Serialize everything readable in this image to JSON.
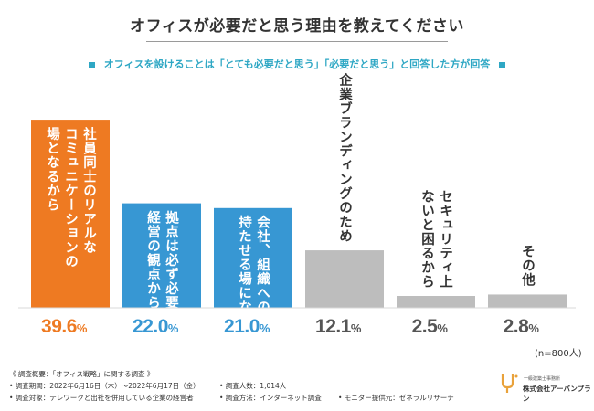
{
  "title": "オフィスが必要だと思う理由を教えてください",
  "subtitle": "オフィスを設けることは「とても必要だと思う」「必要だと思う」と回答した方が回答",
  "colors": {
    "accent": "#ee7a22",
    "blue": "#3797d3",
    "gray": "#bdbdbd",
    "teal": "#2ea7c4"
  },
  "chart_data": {
    "type": "bar",
    "title": "オフィスが必要だと思う理由を教えてください",
    "categories": [
      "社員同士のリアルなコミュニケーションの場となるから",
      "拠点は必ず必要だから経営の観点から",
      "会社、組織への帰属意識を持たせる場になるから",
      "企業ブランディングのため",
      "セキュリティ上ないと困るから",
      "その他"
    ],
    "values": [
      39.6,
      22.0,
      21.0,
      12.1,
      2.5,
      2.8
    ],
    "value_labels": [
      {
        "main": "39.6",
        "unit": "%"
      },
      {
        "main": "22.0",
        "unit": "%"
      },
      {
        "main": "21.0",
        "unit": "%"
      },
      {
        "main": "12.1",
        "unit": "%"
      },
      {
        "main": "2.5",
        "unit": "%"
      },
      {
        "main": "2.8",
        "unit": "%"
      }
    ],
    "bar_label_lines": [
      [
        "社員同士のリアルな",
        "コミュニケーションの",
        "場となるから"
      ],
      [
        "拠点は必ず必要だから",
        "経営の観点から"
      ],
      [
        "会社、組織への帰属意識を",
        "持たせる場になるから"
      ],
      [
        "企業ブランディングのため"
      ],
      [
        "セキュリティ上",
        "ないと困るから"
      ],
      [
        "その他"
      ]
    ],
    "bar_colors": [
      "#ee7a22",
      "#3797d3",
      "#3797d3",
      "#bdbdbd",
      "#bdbdbd",
      "#bdbdbd"
    ],
    "ylim": [
      0,
      45
    ],
    "note": "(n=800人)"
  },
  "footer": {
    "overview": "《 調査概要：「オフィス戦略」に関する調査 》",
    "period": "• 調査期間：2022年6月16日（木）～2022年6月17日（金）",
    "target": "• 調査対象：テレワークと出社を併用している企業の経営者",
    "count": "• 調査人数：1,014人",
    "method": "• 調査方法：インターネット調査",
    "monitor": "• モニター提供元：ゼネラルリサーチ"
  },
  "logo": {
    "small": "一級建築士事務所",
    "name": "株式会社アーバンプラン"
  }
}
